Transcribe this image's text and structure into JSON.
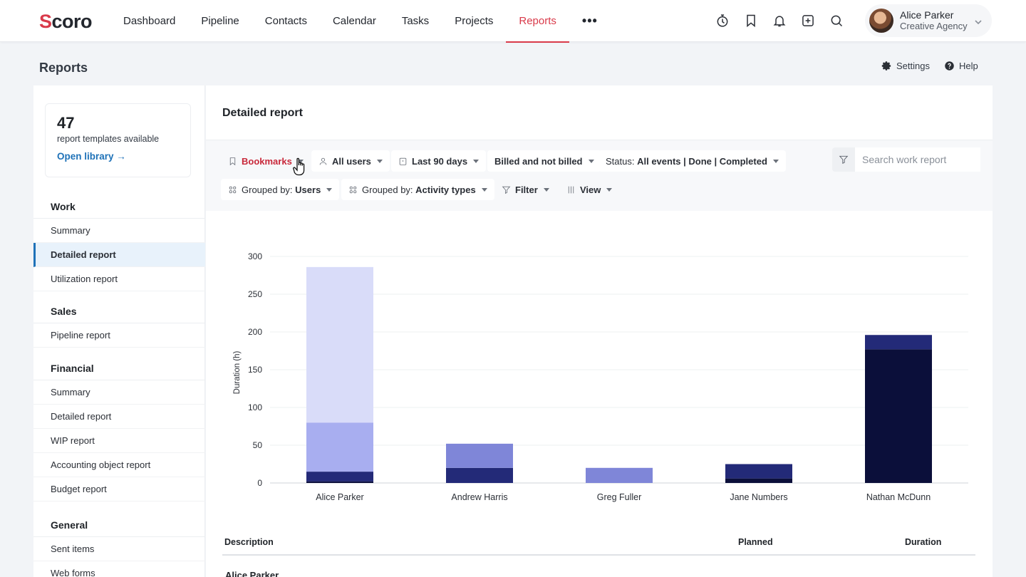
{
  "app": {
    "logo": "Scoro"
  },
  "nav": {
    "items": [
      "Dashboard",
      "Pipeline",
      "Contacts",
      "Calendar",
      "Tasks",
      "Projects",
      "Reports"
    ],
    "active": "Reports",
    "more": "•••"
  },
  "top_icons": [
    "stopwatch-icon",
    "bookmark-icon",
    "bell-icon",
    "plus-square-icon",
    "search-icon"
  ],
  "user": {
    "name": "Alice Parker",
    "org": "Creative Agency"
  },
  "page": {
    "title": "Reports",
    "settings": "Settings",
    "help": "Help"
  },
  "library": {
    "count": "47",
    "text": "report templates available",
    "link": "Open library →"
  },
  "sidebar": {
    "sections": [
      {
        "title": "Work",
        "items": [
          "Summary",
          "Detailed report",
          "Utilization report"
        ]
      },
      {
        "title": "Sales",
        "items": [
          "Pipeline report"
        ]
      },
      {
        "title": "Financial",
        "items": [
          "Summary",
          "Detailed report",
          "WIP report",
          "Accounting object report",
          "Budget report"
        ]
      },
      {
        "title": "General",
        "items": [
          "Sent items",
          "Web forms"
        ]
      }
    ],
    "active": "Detailed report"
  },
  "main": {
    "title": "Detailed report",
    "filters": {
      "bookmarks": "Bookmarks",
      "users": "All users",
      "period": "Last 90 days",
      "billing": "Billed and not billed",
      "status_label": "Status:",
      "status_value": "All events | Done | Completed",
      "group1_label": "Grouped by:",
      "group1_value": "Users",
      "group2_label": "Grouped by:",
      "group2_value": "Activity types",
      "filter": "Filter",
      "view": "View"
    },
    "search": {
      "placeholder": "Search work report"
    }
  },
  "chart_data": {
    "type": "bar",
    "stacked": true,
    "categories": [
      "Alice Parker",
      "Andrew Harris",
      "Greg Fuller",
      "Jane Numbers",
      "Nathan McDunn"
    ],
    "ylabel": "Duration (h)",
    "ylim": [
      0,
      300
    ],
    "yticks": [
      0,
      50,
      100,
      150,
      200,
      250,
      300
    ],
    "grid": true,
    "series": [
      {
        "color": "#0b0f3a",
        "values": [
          2,
          0,
          0,
          6,
          177
        ]
      },
      {
        "color": "#232a78",
        "values": [
          13,
          20,
          0,
          19,
          19
        ]
      },
      {
        "color": "#7f86d8",
        "values": [
          0,
          32,
          20,
          0,
          0
        ]
      },
      {
        "color": "#a8aef0",
        "values": [
          65,
          0,
          0,
          0,
          0
        ]
      },
      {
        "color": "#d9dcf9",
        "values": [
          206,
          0,
          0,
          0,
          0
        ]
      }
    ]
  },
  "table": {
    "description": "Description",
    "planned": "Planned",
    "duration": "Duration",
    "first_group": "Alice Parker"
  }
}
